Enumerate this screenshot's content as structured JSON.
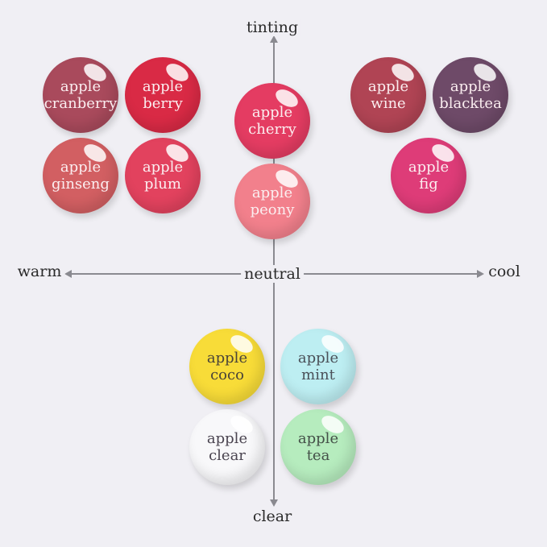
{
  "axes": {
    "top": "tinting",
    "bottom": "clear",
    "left": "warm",
    "right": "cool",
    "center": "neutral"
  },
  "shades": [
    {
      "line1": "apple",
      "line2": "cranberry",
      "color": "#a94a5c",
      "text": "#fbeef0"
    },
    {
      "line1": "apple",
      "line2": "berry",
      "color": "#d92a45",
      "text": "#fbeef0"
    },
    {
      "line1": "apple",
      "line2": "ginseng",
      "color": "#d25f62",
      "text": "#fbeef0"
    },
    {
      "line1": "apple",
      "line2": "plum",
      "color": "#e2425e",
      "text": "#fbeef0"
    },
    {
      "line1": "apple",
      "line2": "cherry",
      "color": "#e43c62",
      "text": "#fbeef0"
    },
    {
      "line1": "apple",
      "line2": "peony",
      "color": "#f2808c",
      "text": "#fbeef0"
    },
    {
      "line1": "apple",
      "line2": "wine",
      "color": "#b04454",
      "text": "#fbeef0"
    },
    {
      "line1": "apple",
      "line2": "blacktea",
      "color": "#6e4a68",
      "text": "#fbeef0"
    },
    {
      "line1": "apple",
      "line2": "fig",
      "color": "#de3c78",
      "text": "#fbeef0"
    },
    {
      "line1": "apple",
      "line2": "coco",
      "color": "#f8dc38",
      "text": "#4a4438"
    },
    {
      "line1": "apple",
      "line2": "mint",
      "color": "#bdeef2",
      "text": "#4a5058"
    },
    {
      "line1": "apple",
      "line2": "clear",
      "color": "#f8f8fa",
      "text": "#4a4450"
    },
    {
      "line1": "apple",
      "line2": "tea",
      "color": "#b6ecbe",
      "text": "#445048"
    }
  ]
}
